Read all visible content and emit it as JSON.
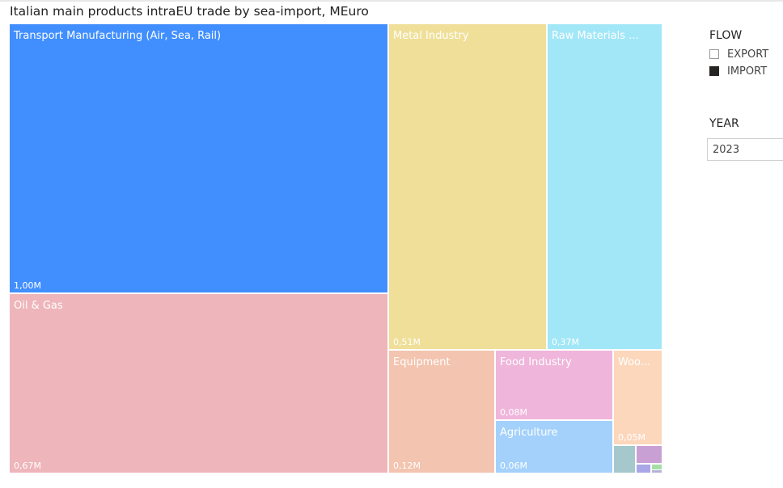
{
  "title": "Italian main products intraEU trade by sea-import, MEuro",
  "chart_data": {
    "type": "treemap",
    "title": "Italian main products intraEU trade by sea-import, MEuro",
    "unit": "MEuro",
    "legend": "none",
    "items": [
      {
        "label": "Transport Manufacturing (Air, Sea, Rail)",
        "value": 1.0,
        "value_label": "1,00M",
        "color": "#418FFF"
      },
      {
        "label": "Oil & Gas",
        "value": 0.67,
        "value_label": "0,67M",
        "color": "#EEB5BA"
      },
      {
        "label": "Metal Industry",
        "value": 0.51,
        "value_label": "0,51M",
        "color": "#EFDF98"
      },
      {
        "label": "Raw Materials Ind...",
        "value": 0.37,
        "value_label": "0,37M",
        "color": "#A2E7F7"
      },
      {
        "label": "Equipment",
        "value": 0.12,
        "value_label": "0,12M",
        "color": "#F3C4AF"
      },
      {
        "label": "Food Industry",
        "value": 0.08,
        "value_label": "0,08M",
        "color": "#EFB5DB"
      },
      {
        "label": "Agriculture",
        "value": 0.06,
        "value_label": "0,06M",
        "color": "#A3D1FB"
      },
      {
        "label": "Wood...",
        "value": 0.05,
        "value_label": "0,05M",
        "color": "#FCD7BC"
      },
      {
        "label": "",
        "value": 0.012,
        "value_label": "",
        "color": "#A4C8CC"
      },
      {
        "label": "",
        "value": 0.009,
        "value_label": "",
        "color": "#C9A0D4"
      },
      {
        "label": "",
        "value": 0.004,
        "value_label": "",
        "color": "#A9A7E8"
      },
      {
        "label": "",
        "value": 0.002,
        "value_label": "",
        "color": "#A6DDA7"
      },
      {
        "label": "",
        "value": 0.001,
        "value_label": "",
        "color": "#B3B3D9"
      }
    ]
  },
  "slicers": {
    "flow": {
      "title": "FLOW",
      "items": [
        {
          "label": "EXPORT",
          "checked": false
        },
        {
          "label": "IMPORT",
          "checked": true
        }
      ]
    },
    "year": {
      "title": "YEAR",
      "selected": "2023"
    }
  }
}
